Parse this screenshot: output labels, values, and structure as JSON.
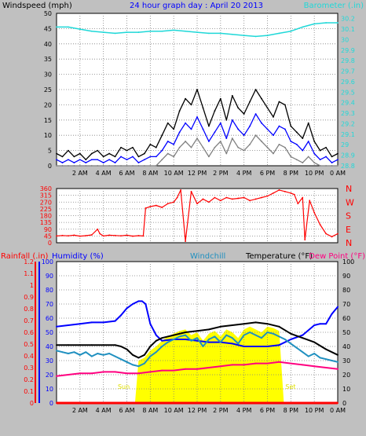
{
  "header": {
    "left_label": "Windspeed (mph)",
    "title": "24 hour graph day : April 20 2013",
    "right_label": "Barometer (.in)"
  },
  "direction_labels": [
    "N",
    "W",
    "S",
    "E",
    "N"
  ],
  "bottom_header": {
    "rainfall_label": "Rainfall (.in)",
    "humidity_label": "Humidity (%)",
    "windchill_label": "Windchill",
    "temperature_label": "Temperature (°F)",
    "dewpoint_label": "Dew Point (°F)"
  },
  "annotations": {
    "sunrise": "Sun",
    "sunset": "Set"
  },
  "colors": {
    "background": "#c0c0c0",
    "plot_bg": "#ffffff",
    "wind_gust": "#000000",
    "wind_avg": "#0000ff",
    "wind_min": "#808080",
    "barometer": "#20d8d8",
    "direction": "#ff0000",
    "humidity": "#0000ff",
    "windchill": "#2090c0",
    "temperature": "#000000",
    "dewpoint": "#ff0080",
    "sun": "#ffff00",
    "rainfall": "#ff0000",
    "rain_axis": "#ff0000",
    "humidity_axis": "#0000ff"
  },
  "chart_data": [
    {
      "type": "line",
      "panel": "wind-barometer",
      "x_ticks": [
        "2 AM",
        "4 AM",
        "6 AM",
        "8 AM",
        "10 AM",
        "12 PM",
        "2 PM",
        "4 PM",
        "6 PM",
        "8 PM",
        "10 PM",
        "0 AM"
      ],
      "x_range_hours": [
        0,
        24
      ],
      "left_axis": {
        "label": "Windspeed (mph)",
        "ticks": [
          0,
          5,
          10,
          15,
          20,
          25,
          30,
          35,
          40,
          45,
          50
        ],
        "ylim": [
          0,
          50
        ]
      },
      "right_axis": {
        "label": "Barometer (.in)",
        "ticks": [
          "28.8",
          "28.9",
          "29",
          "29.1",
          "29.2",
          "29.3",
          "29.4",
          "29.5",
          "29.6",
          "29.7",
          "29.8",
          "29.9",
          "30",
          "30.1",
          "30.2"
        ],
        "ylim": [
          28.8,
          30.25
        ]
      },
      "series": [
        {
          "name": "Windspeed gust",
          "axis": "left",
          "color_key": "wind_gust",
          "x": [
            0,
            0.5,
            1,
            1.5,
            2,
            2.5,
            3,
            3.5,
            4,
            4.5,
            5,
            5.5,
            6,
            6.5,
            7,
            7.5,
            8,
            8.5,
            9,
            9.5,
            10,
            10.5,
            11,
            11.5,
            12,
            12.5,
            13,
            13.5,
            14,
            14.5,
            15,
            15.5,
            16,
            16.5,
            17,
            17.5,
            18,
            18.5,
            19,
            19.5,
            20,
            20.5,
            21,
            21.5,
            22,
            22.5,
            23,
            23.5,
            24
          ],
          "values": [
            4,
            3,
            5,
            3,
            4,
            2,
            4,
            5,
            3,
            4,
            3,
            6,
            5,
            6,
            3,
            4,
            7,
            6,
            10,
            14,
            12,
            18,
            22,
            20,
            25,
            19,
            13,
            18,
            22,
            15,
            23,
            19,
            17,
            21,
            25,
            22,
            19,
            16,
            21,
            20,
            13,
            11,
            9,
            14,
            8,
            5,
            6,
            3,
            4
          ]
        },
        {
          "name": "Windspeed average",
          "axis": "left",
          "color_key": "wind_avg",
          "x": [
            0,
            0.5,
            1,
            1.5,
            2,
            2.5,
            3,
            3.5,
            4,
            4.5,
            5,
            5.5,
            6,
            6.5,
            7,
            7.5,
            8,
            8.5,
            9,
            9.5,
            10,
            10.5,
            11,
            11.5,
            12,
            12.5,
            13,
            13.5,
            14,
            14.5,
            15,
            15.5,
            16,
            16.5,
            17,
            17.5,
            18,
            18.5,
            19,
            19.5,
            20,
            20.5,
            21,
            21.5,
            22,
            22.5,
            23,
            23.5,
            24
          ],
          "values": [
            2,
            1,
            2,
            1,
            2,
            1,
            2,
            2,
            1,
            2,
            1,
            3,
            2,
            3,
            1,
            2,
            3,
            3,
            5,
            8,
            7,
            11,
            14,
            12,
            16,
            12,
            8,
            11,
            14,
            9,
            15,
            12,
            10,
            13,
            17,
            14,
            12,
            10,
            13,
            12,
            8,
            7,
            5,
            8,
            4,
            2,
            3,
            1,
            2
          ]
        },
        {
          "name": "Windspeed minimum",
          "axis": "left",
          "color_key": "wind_min",
          "x": [
            0,
            0.5,
            1,
            1.5,
            2,
            2.5,
            3,
            3.5,
            4,
            4.5,
            5,
            5.5,
            6,
            6.5,
            7,
            7.5,
            8,
            8.5,
            9,
            9.5,
            10,
            10.5,
            11,
            11.5,
            12,
            12.5,
            13,
            13.5,
            14,
            14.5,
            15,
            15.5,
            16,
            16.5,
            17,
            17.5,
            18,
            18.5,
            19,
            19.5,
            20,
            20.5,
            21,
            21.5,
            22,
            22.5,
            23,
            23.5,
            24
          ],
          "values": [
            0,
            0,
            0,
            0,
            0,
            0,
            0,
            0,
            0,
            0,
            0,
            0,
            0,
            0,
            0,
            0,
            0,
            0,
            2,
            4,
            3,
            6,
            8,
            6,
            9,
            6,
            3,
            6,
            8,
            4,
            9,
            6,
            5,
            7,
            10,
            8,
            6,
            4,
            7,
            6,
            3,
            2,
            1,
            3,
            1,
            0,
            0,
            0,
            0
          ]
        },
        {
          "name": "Barometer",
          "axis": "right",
          "color_key": "barometer",
          "x": [
            0,
            1,
            2,
            3,
            4,
            5,
            6,
            7,
            8,
            9,
            10,
            11,
            12,
            13,
            14,
            15,
            16,
            17,
            18,
            19,
            20,
            21,
            22,
            23,
            24
          ],
          "values": [
            30.12,
            30.12,
            30.1,
            30.08,
            30.07,
            30.06,
            30.07,
            30.07,
            30.08,
            30.08,
            30.09,
            30.08,
            30.07,
            30.06,
            30.06,
            30.05,
            30.04,
            30.03,
            30.04,
            30.06,
            30.08,
            30.12,
            30.15,
            30.16,
            30.16
          ]
        }
      ]
    },
    {
      "type": "line",
      "panel": "wind-direction",
      "x_range_hours": [
        0,
        24
      ],
      "left_axis": {
        "ticks": [
          0,
          45,
          90,
          135,
          180,
          225,
          270,
          315,
          360
        ],
        "ylim": [
          0,
          360
        ]
      },
      "right_axis": {
        "ticks": [
          "N",
          "E",
          "S",
          "W",
          "N"
        ]
      },
      "series": [
        {
          "name": "Wind direction",
          "color_key": "direction",
          "x": [
            0,
            0.5,
            1,
            1.5,
            2,
            2.5,
            3,
            3.5,
            3.7,
            4,
            4.5,
            5,
            5.5,
            6,
            6.5,
            7,
            7.4,
            7.6,
            8,
            8.5,
            9,
            9.5,
            10,
            10.3,
            10.6,
            11,
            11.5,
            12,
            12.5,
            13,
            13.5,
            14,
            14.5,
            15,
            15.5,
            16,
            16.5,
            17,
            17.5,
            18,
            18.5,
            19,
            19.5,
            20,
            20.3,
            20.6,
            21,
            21.2,
            21.6,
            22,
            22.5,
            23,
            23.5,
            24
          ],
          "values": [
            45,
            48,
            46,
            50,
            44,
            47,
            52,
            90,
            60,
            45,
            50,
            48,
            46,
            50,
            44,
            47,
            45,
            230,
            240,
            248,
            235,
            260,
            270,
            300,
            350,
            10,
            340,
            260,
            290,
            270,
            300,
            280,
            300,
            290,
            295,
            300,
            280,
            290,
            300,
            310,
            330,
            350,
            340,
            330,
            320,
            260,
            300,
            20,
            280,
            200,
            120,
            60,
            40,
            60
          ]
        }
      ]
    },
    {
      "type": "line",
      "panel": "temperature-humidity-rain",
      "x_ticks": [
        "2 AM",
        "4 AM",
        "6 AM",
        "8 AM",
        "10 AM",
        "12 PM",
        "2 PM",
        "4 PM",
        "6 PM",
        "8 PM",
        "10 PM",
        "0 AM"
      ],
      "x_range_hours": [
        0,
        24
      ],
      "rainfall_axis": {
        "label": "Rainfall (.in)",
        "ticks": [
          "0",
          "0.1",
          "0.2",
          "0.3",
          "0.4",
          "0.5",
          "0.6",
          "0.7",
          "0.8",
          "0.9",
          "1",
          "1.1",
          "1.2"
        ],
        "ylim": [
          0,
          1.2
        ]
      },
      "humidity_axis": {
        "label": "Humidity (%)",
        "ticks": [
          0,
          10,
          20,
          30,
          40,
          50,
          60,
          70,
          80,
          90,
          100
        ],
        "ylim": [
          0,
          100
        ]
      },
      "temperature_axis": {
        "label": "Temperature (°F)",
        "ticks": [
          0,
          10,
          20,
          30,
          40,
          50,
          60,
          70,
          80,
          90,
          100
        ],
        "ylim": [
          0,
          100
        ]
      },
      "sun_window_hours": [
        6.7,
        19.4
      ],
      "series": [
        {
          "name": "Humidity",
          "axis": "humidity",
          "color_key": "humidity",
          "x": [
            0,
            1,
            2,
            3,
            4,
            5,
            5.5,
            6,
            6.5,
            7,
            7.3,
            7.6,
            8,
            8.5,
            9,
            10,
            11,
            12,
            13,
            14,
            15,
            16,
            17,
            18,
            19,
            20,
            21,
            22,
            22.5,
            23,
            23.5,
            24
          ],
          "values": [
            54,
            55,
            56,
            57,
            57,
            58,
            62,
            67,
            70,
            72,
            72,
            70,
            56,
            48,
            44,
            45,
            45,
            44,
            43,
            43,
            42,
            40,
            40,
            40,
            41,
            45,
            48,
            55,
            56,
            56,
            63,
            68
          ]
        },
        {
          "name": "Windchill",
          "axis": "temperature",
          "color_key": "windchill",
          "x": [
            0,
            0.5,
            1,
            1.5,
            2,
            2.5,
            3,
            3.5,
            4,
            4.5,
            5,
            5.5,
            6,
            6.5,
            7,
            7.5,
            8,
            8.5,
            9,
            9.5,
            10,
            10.5,
            11,
            11.5,
            12,
            12.5,
            13,
            13.5,
            14,
            14.5,
            15,
            15.5,
            16,
            16.5,
            17,
            17.5,
            18,
            18.5,
            19,
            19.5,
            20,
            20.5,
            21,
            21.5,
            22,
            22.5,
            23,
            23.5,
            24
          ],
          "values": [
            37,
            36,
            35,
            36,
            34,
            36,
            33,
            35,
            34,
            35,
            33,
            31,
            29,
            27,
            26,
            28,
            33,
            36,
            40,
            43,
            45,
            47,
            48,
            44,
            46,
            40,
            45,
            47,
            43,
            48,
            46,
            42,
            48,
            50,
            48,
            46,
            50,
            49,
            47,
            45,
            42,
            39,
            36,
            33,
            35,
            32,
            31,
            30,
            29
          ]
        },
        {
          "name": "Temperature",
          "axis": "temperature",
          "color_key": "temperature",
          "x": [
            0,
            1,
            2,
            3,
            4,
            5,
            5.5,
            6,
            6.5,
            7,
            7.5,
            8,
            8.5,
            9,
            10,
            11,
            12,
            13,
            14,
            15,
            16,
            17,
            18,
            19,
            20,
            21,
            22,
            23,
            24
          ],
          "values": [
            41,
            41,
            41,
            41,
            41,
            41,
            40,
            38,
            34,
            32,
            34,
            40,
            44,
            46,
            48,
            50,
            51,
            52,
            54,
            55,
            56,
            57,
            56,
            54,
            49,
            46,
            43,
            38,
            34
          ]
        },
        {
          "name": "Dew Point",
          "axis": "temperature",
          "color_key": "dewpoint",
          "x": [
            0,
            1,
            2,
            3,
            4,
            5,
            6,
            7,
            8,
            9,
            10,
            11,
            12,
            13,
            14,
            15,
            16,
            17,
            18,
            19,
            20,
            21,
            22,
            23,
            24
          ],
          "values": [
            19,
            20,
            21,
            21,
            22,
            22,
            21,
            21,
            22,
            23,
            23,
            24,
            24,
            25,
            26,
            27,
            27,
            28,
            28,
            29,
            28,
            27,
            26,
            25,
            24
          ]
        },
        {
          "name": "Rainfall",
          "axis": "rainfall",
          "color_key": "rainfall",
          "x": [
            0,
            24
          ],
          "values": [
            0,
            0
          ]
        }
      ]
    }
  ]
}
